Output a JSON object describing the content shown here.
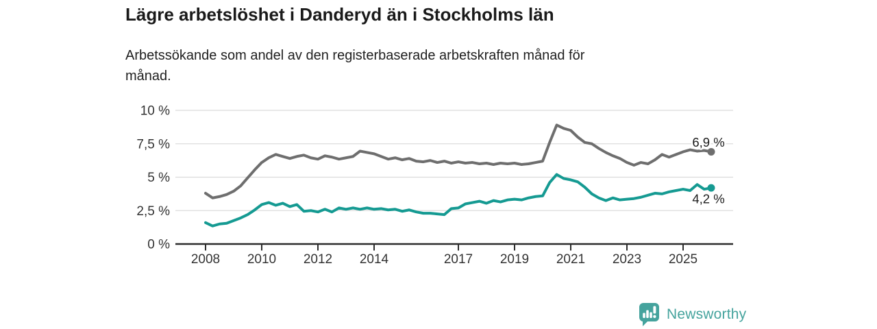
{
  "header": {
    "title": "Lägre arbetslöshet i Danderyd än i Stockholms län",
    "subtitle": "Arbetssökande som andel av den registerbaserade arbetskraften månad för\nmånad."
  },
  "footer": {
    "brand": "Newsworthy"
  },
  "colors": {
    "danderyd": "#159a92",
    "stockholm": "#6e6e6e",
    "gridline": "#dbdbdb",
    "axis_line": "#2b2b2b",
    "axis_text": "#333333",
    "title_text": "#1a1a1a",
    "end_label_text": "#1a1a1a",
    "logo": "#45a39d"
  },
  "chart_data": {
    "type": "line",
    "title": "Lägre arbetslöshet i Danderyd än i Stockholms län",
    "xlabel": "",
    "ylabel": "%",
    "grid": true,
    "ylim": [
      0,
      10
    ],
    "x_start": 2008,
    "x_step": 0.25,
    "x_end": 2026,
    "yticks": [
      {
        "v": 10,
        "label": "10 %"
      },
      {
        "v": 7.5,
        "label": "7,5 %"
      },
      {
        "v": 5,
        "label": "5 %"
      },
      {
        "v": 2.5,
        "label": "2,5 %"
      },
      {
        "v": 0,
        "label": "0 %"
      }
    ],
    "xticks": [
      2008,
      2010,
      2012,
      2014,
      2017,
      2019,
      2021,
      2023,
      2025
    ],
    "series": [
      {
        "name": "Stockholms län",
        "color": "#6e6e6e",
        "end_label": "6,9 %",
        "end_value": 6.9,
        "end_label_side": "above",
        "label_pos": {
          "year": 17.9,
          "value": 5.85
        },
        "values": [
          3.8,
          3.45,
          3.55,
          3.7,
          3.95,
          4.35,
          4.95,
          5.55,
          6.1,
          6.45,
          6.7,
          6.55,
          6.4,
          6.55,
          6.65,
          6.45,
          6.35,
          6.6,
          6.5,
          6.35,
          6.45,
          6.55,
          6.95,
          6.85,
          6.75,
          6.55,
          6.35,
          6.45,
          6.3,
          6.4,
          6.2,
          6.15,
          6.25,
          6.1,
          6.2,
          6.05,
          6.15,
          6.05,
          6.1,
          6.0,
          6.05,
          5.95,
          6.05,
          6.0,
          6.05,
          5.95,
          6.0,
          6.1,
          6.2,
          7.6,
          8.9,
          8.65,
          8.5,
          8.0,
          7.6,
          7.5,
          7.15,
          6.85,
          6.6,
          6.4,
          6.1,
          5.9,
          6.1,
          6.0,
          6.3,
          6.7,
          6.5,
          6.7,
          6.9,
          7.05,
          6.95,
          7.0,
          6.9
        ]
      },
      {
        "name": "Danderyd",
        "color": "#159a92",
        "end_label": "4,2 %",
        "end_value": 4.2,
        "end_label_side": "below",
        "label_pos": {
          "year": 12.78,
          "value": 2.15
        },
        "values": [
          1.6,
          1.35,
          1.5,
          1.55,
          1.75,
          1.95,
          2.2,
          2.55,
          2.95,
          3.1,
          2.9,
          3.05,
          2.8,
          2.95,
          2.45,
          2.5,
          2.4,
          2.6,
          2.4,
          2.7,
          2.6,
          2.7,
          2.6,
          2.7,
          2.6,
          2.65,
          2.55,
          2.6,
          2.45,
          2.55,
          2.4,
          2.3,
          2.3,
          2.25,
          2.2,
          2.65,
          2.7,
          3.0,
          3.1,
          3.2,
          3.05,
          3.25,
          3.15,
          3.3,
          3.35,
          3.3,
          3.45,
          3.55,
          3.6,
          4.6,
          5.2,
          4.9,
          4.8,
          4.65,
          4.25,
          3.75,
          3.45,
          3.25,
          3.45,
          3.3,
          3.35,
          3.4,
          3.5,
          3.65,
          3.8,
          3.75,
          3.9,
          4.0,
          4.1,
          4.0,
          4.45,
          4.1,
          4.2
        ]
      }
    ]
  }
}
